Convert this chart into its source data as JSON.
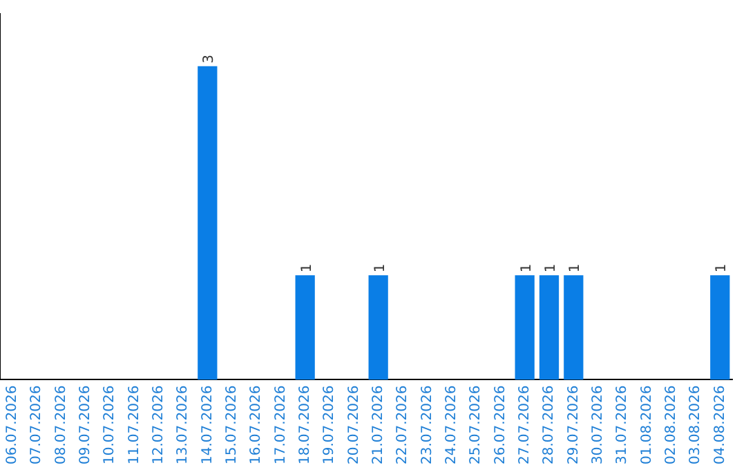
{
  "chart_data": {
    "type": "bar",
    "categories": [
      "06.07.2026",
      "07.07.2026",
      "08.07.2026",
      "09.07.2026",
      "10.07.2026",
      "11.07.2026",
      "12.07.2026",
      "13.07.2026",
      "14.07.2026",
      "15.07.2026",
      "16.07.2026",
      "17.07.2026",
      "18.07.2026",
      "19.07.2026",
      "20.07.2026",
      "21.07.2026",
      "22.07.2026",
      "23.07.2026",
      "24.07.2026",
      "25.07.2026",
      "26.07.2026",
      "27.07.2026",
      "28.07.2026",
      "29.07.2026",
      "30.07.2026",
      "31.07.2026",
      "01.08.2026",
      "02.08.2026",
      "03.08.2026",
      "04.08.2026"
    ],
    "values": [
      0,
      0,
      0,
      0,
      0,
      0,
      0,
      0,
      3,
      0,
      0,
      0,
      1,
      0,
      0,
      1,
      0,
      0,
      0,
      0,
      0,
      1,
      1,
      1,
      0,
      0,
      0,
      0,
      0,
      1
    ],
    "value_labels": [
      null,
      null,
      null,
      null,
      null,
      null,
      null,
      null,
      "3",
      null,
      null,
      null,
      "1",
      null,
      null,
      "1",
      null,
      null,
      null,
      null,
      null,
      "1",
      "1",
      "1",
      null,
      null,
      null,
      null,
      null,
      "1"
    ],
    "color": "#0a7ee6",
    "relative": false,
    "grid": false,
    "legend": false,
    "tick_labels": "x"
  }
}
